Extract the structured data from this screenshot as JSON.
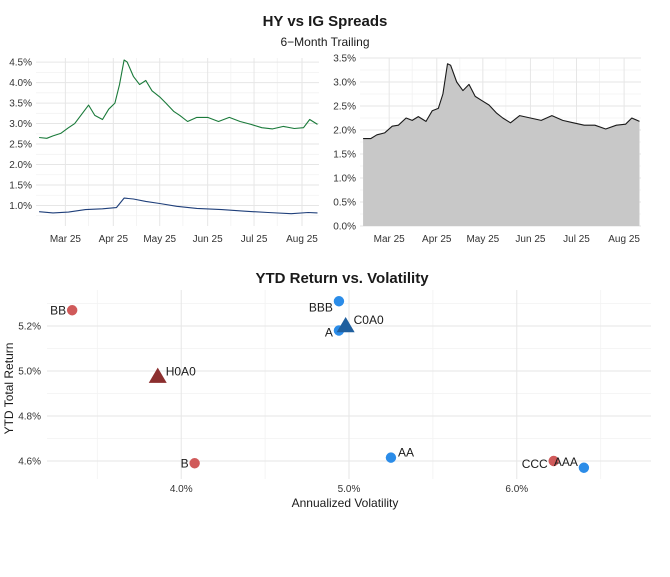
{
  "spreads": {
    "title": "HY vs IG Spreads",
    "subtitle": "6−Month Trailing"
  },
  "scatter": {
    "title": "YTD Return vs. Volatility"
  },
  "colors": {
    "hy_line": "#1a7a3a",
    "ig_line": "#1f3f7a",
    "area_fill": "#c8c8c8",
    "area_line": "#1a1a1a",
    "hy_points": "#d05a5a",
    "ig_points": "#2b8ce8",
    "hy_index": "#8b2e2e",
    "ig_index": "#1f5f9e"
  },
  "chart_data": [
    {
      "type": "line",
      "x_ticks": [
        "Mar 25",
        "Apr 25",
        "May 25",
        "Jun 25",
        "Jul 25",
        "Aug 25"
      ],
      "x_range": [
        "2025-02-10",
        "2025-08-12"
      ],
      "ylim": [
        0.5,
        4.6
      ],
      "y_ticks": [
        "1.0%",
        "1.5%",
        "2.0%",
        "2.5%",
        "3.0%",
        "3.5%",
        "4.0%",
        "4.5%"
      ],
      "y_tick_values": [
        1.0,
        1.5,
        2.0,
        2.5,
        3.0,
        3.5,
        4.0,
        4.5
      ],
      "grid": true,
      "series": [
        {
          "color": "#1a7a3a",
          "points": [
            [
              "2025-02-12",
              2.66
            ],
            [
              "2025-02-17",
              2.64
            ],
            [
              "2025-02-21",
              2.7
            ],
            [
              "2025-02-26",
              2.76
            ],
            [
              "2025-03-03",
              2.9
            ],
            [
              "2025-03-07",
              3.0
            ],
            [
              "2025-03-12",
              3.25
            ],
            [
              "2025-03-16",
              3.45
            ],
            [
              "2025-03-20",
              3.2
            ],
            [
              "2025-03-25",
              3.1
            ],
            [
              "2025-03-29",
              3.35
            ],
            [
              "2025-04-02",
              3.5
            ],
            [
              "2025-04-05",
              3.95
            ],
            [
              "2025-04-08",
              4.55
            ],
            [
              "2025-04-10",
              4.5
            ],
            [
              "2025-04-14",
              4.15
            ],
            [
              "2025-04-18",
              3.95
            ],
            [
              "2025-04-22",
              4.05
            ],
            [
              "2025-04-26",
              3.8
            ],
            [
              "2025-05-01",
              3.65
            ],
            [
              "2025-05-05",
              3.5
            ],
            [
              "2025-05-10",
              3.3
            ],
            [
              "2025-05-14",
              3.2
            ],
            [
              "2025-05-19",
              3.05
            ],
            [
              "2025-05-25",
              3.15
            ],
            [
              "2025-06-01",
              3.15
            ],
            [
              "2025-06-08",
              3.05
            ],
            [
              "2025-06-15",
              3.15
            ],
            [
              "2025-06-22",
              3.05
            ],
            [
              "2025-06-29",
              2.98
            ],
            [
              "2025-07-06",
              2.9
            ],
            [
              "2025-07-13",
              2.87
            ],
            [
              "2025-07-20",
              2.93
            ],
            [
              "2025-07-27",
              2.88
            ],
            [
              "2025-08-02",
              2.9
            ],
            [
              "2025-08-06",
              3.1
            ],
            [
              "2025-08-11",
              2.98
            ]
          ]
        },
        {
          "color": "#1f3f7a",
          "points": [
            [
              "2025-02-12",
              0.85
            ],
            [
              "2025-02-21",
              0.82
            ],
            [
              "2025-03-03",
              0.84
            ],
            [
              "2025-03-14",
              0.9
            ],
            [
              "2025-03-25",
              0.92
            ],
            [
              "2025-04-03",
              0.95
            ],
            [
              "2025-04-08",
              1.18
            ],
            [
              "2025-04-14",
              1.16
            ],
            [
              "2025-04-22",
              1.1
            ],
            [
              "2025-05-01",
              1.05
            ],
            [
              "2025-05-12",
              0.98
            ],
            [
              "2025-05-25",
              0.93
            ],
            [
              "2025-06-10",
              0.9
            ],
            [
              "2025-06-25",
              0.86
            ],
            [
              "2025-07-10",
              0.83
            ],
            [
              "2025-07-25",
              0.8
            ],
            [
              "2025-08-05",
              0.83
            ],
            [
              "2025-08-11",
              0.82
            ]
          ]
        }
      ]
    },
    {
      "type": "area",
      "x_ticks": [
        "Mar 25",
        "Apr 25",
        "May 25",
        "Jun 25",
        "Jul 25",
        "Aug 25"
      ],
      "x_range": [
        "2025-02-10",
        "2025-08-12"
      ],
      "ylim": [
        0,
        3.5
      ],
      "y_ticks": [
        "0.0%",
        "0.5%",
        "1.0%",
        "1.5%",
        "2.0%",
        "2.5%",
        "3.0%",
        "3.5%"
      ],
      "y_tick_values": [
        0,
        0.5,
        1.0,
        1.5,
        2.0,
        2.5,
        3.0,
        3.5
      ],
      "grid": true,
      "series": [
        {
          "color": "#1a1a1a",
          "fill": "#c8c8c8",
          "points": [
            [
              "2025-02-12",
              1.82
            ],
            [
              "2025-02-17",
              1.82
            ],
            [
              "2025-02-21",
              1.9
            ],
            [
              "2025-02-26",
              1.94
            ],
            [
              "2025-03-03",
              2.08
            ],
            [
              "2025-03-07",
              2.1
            ],
            [
              "2025-03-12",
              2.25
            ],
            [
              "2025-03-16",
              2.2
            ],
            [
              "2025-03-20",
              2.28
            ],
            [
              "2025-03-25",
              2.18
            ],
            [
              "2025-03-29",
              2.4
            ],
            [
              "2025-04-02",
              2.45
            ],
            [
              "2025-04-05",
              2.75
            ],
            [
              "2025-04-08",
              3.38
            ],
            [
              "2025-04-10",
              3.35
            ],
            [
              "2025-04-14",
              3.0
            ],
            [
              "2025-04-18",
              2.82
            ],
            [
              "2025-04-22",
              2.95
            ],
            [
              "2025-04-26",
              2.7
            ],
            [
              "2025-05-01",
              2.6
            ],
            [
              "2025-05-05",
              2.52
            ],
            [
              "2025-05-10",
              2.35
            ],
            [
              "2025-05-14",
              2.25
            ],
            [
              "2025-05-19",
              2.15
            ],
            [
              "2025-05-25",
              2.3
            ],
            [
              "2025-06-01",
              2.25
            ],
            [
              "2025-06-08",
              2.2
            ],
            [
              "2025-06-15",
              2.3
            ],
            [
              "2025-06-22",
              2.2
            ],
            [
              "2025-06-29",
              2.15
            ],
            [
              "2025-07-06",
              2.1
            ],
            [
              "2025-07-13",
              2.1
            ],
            [
              "2025-07-20",
              2.02
            ],
            [
              "2025-07-27",
              2.1
            ],
            [
              "2025-08-02",
              2.12
            ],
            [
              "2025-08-06",
              2.25
            ],
            [
              "2025-08-11",
              2.18
            ]
          ]
        }
      ]
    },
    {
      "type": "scatter",
      "title": "YTD Return vs. Volatility",
      "xlabel": "Annualized Volatility",
      "ylabel": "YTD Total Return",
      "xlim": [
        3.2,
        6.8
      ],
      "ylim": [
        4.52,
        5.36
      ],
      "x_ticks": [
        "4.0%",
        "5.0%",
        "6.0%"
      ],
      "x_tick_values": [
        4.0,
        5.0,
        6.0
      ],
      "y_ticks": [
        "4.6%",
        "4.8%",
        "5.0%",
        "5.2%"
      ],
      "y_tick_values": [
        4.6,
        4.8,
        5.0,
        5.2
      ],
      "grid": true,
      "points": [
        {
          "label": "BB",
          "x": 3.35,
          "y": 5.27,
          "group": "hy",
          "shape": "circle"
        },
        {
          "label": "B",
          "x": 4.08,
          "y": 4.59,
          "group": "hy",
          "shape": "circle"
        },
        {
          "label": "CCC",
          "x": 6.22,
          "y": 4.6,
          "group": "hy",
          "shape": "circle"
        },
        {
          "label": "H0A0",
          "x": 3.86,
          "y": 4.975,
          "group": "hy",
          "shape": "triangle"
        },
        {
          "label": "BBB",
          "x": 4.94,
          "y": 5.31,
          "group": "ig",
          "shape": "circle"
        },
        {
          "label": "A",
          "x": 4.94,
          "y": 5.18,
          "group": "ig",
          "shape": "circle"
        },
        {
          "label": "C0A0",
          "x": 4.98,
          "y": 5.2,
          "group": "ig",
          "shape": "triangle"
        },
        {
          "label": "AA",
          "x": 5.25,
          "y": 4.615,
          "group": "ig",
          "shape": "circle"
        },
        {
          "label": "AAA",
          "x": 6.4,
          "y": 4.57,
          "group": "ig",
          "shape": "circle"
        }
      ]
    }
  ]
}
